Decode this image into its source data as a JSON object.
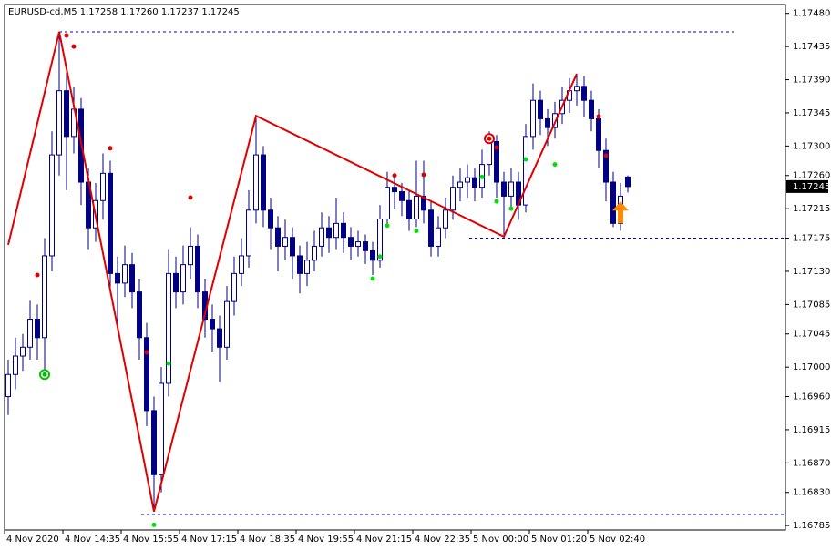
{
  "chart_data": {
    "type": "candlestick",
    "title": "EURUSD-cd,M5  1.17258 1.17260 1.17237 1.17245",
    "categories": [
      "4 Nov 2020",
      null,
      null,
      null,
      null,
      null,
      null,
      null,
      "4 Nov 14:35",
      null,
      null,
      null,
      null,
      null,
      null,
      null,
      "4 Nov 15:55",
      null,
      null,
      null,
      null,
      null,
      null,
      null,
      "4 Nov 17:15",
      null,
      null,
      null,
      null,
      null,
      null,
      null,
      "4 Nov 18:35",
      null,
      null,
      null,
      null,
      null,
      null,
      null,
      "4 Nov 19:55",
      null,
      null,
      null,
      null,
      null,
      null,
      null,
      "4 Nov 21:15",
      null,
      null,
      null,
      null,
      null,
      null,
      null,
      "4 Nov 22:35",
      null,
      null,
      null,
      null,
      null,
      null,
      null,
      "5 Nov 00:00",
      null,
      null,
      null,
      null,
      null,
      null,
      null,
      "5 Nov 01:20",
      null,
      null,
      null,
      null,
      null,
      null,
      null,
      "5 Nov 02:40",
      null,
      null,
      null,
      null,
      null
    ],
    "open": [
      1.1696,
      1.1699,
      1.17015,
      1.17027,
      1.17065,
      1.1704,
      1.17151,
      1.17288,
      1.17375,
      1.17313,
      1.1735,
      1.17251,
      1.17189,
      1.17226,
      1.17263,
      1.17127,
      1.17114,
      1.17139,
      1.17102,
      1.1704,
      1.16941,
      1.16854,
      1.16978,
      1.17127,
      1.17102,
      1.17139,
      1.17164,
      1.17102,
      1.17065,
      1.17052,
      1.17027,
      1.17089,
      1.17127,
      1.17151,
      1.17213,
      1.17288,
      1.17213,
      1.17189,
      1.17164,
      1.17176,
      1.17151,
      1.17127,
      1.17145,
      1.17164,
      1.17189,
      1.17176,
      1.17195,
      1.17176,
      1.17164,
      1.1717,
      1.17158,
      1.17145,
      1.17201,
      1.17244,
      1.17238,
      1.17226,
      1.17201,
      1.17232,
      1.17213,
      1.17164,
      1.17189,
      1.17213,
      1.17244,
      1.17251,
      1.17257,
      1.17244,
      1.17275,
      1.17306,
      1.17251,
      1.17232,
      1.17251,
      1.1722,
      1.17313,
      1.17362,
      1.17337,
      1.17325,
      1.17344,
      1.17362,
      1.17375,
      1.17381,
      1.17362,
      1.17337,
      1.17294,
      1.17251,
      1.17195,
      1.17258
    ],
    "high": [
      1.1701,
      1.1704,
      1.17045,
      1.1709,
      1.17085,
      1.17175,
      1.1732,
      1.17455,
      1.174,
      1.1738,
      1.17365,
      1.1727,
      1.1725,
      1.1729,
      1.1728,
      1.1715,
      1.17165,
      1.17155,
      1.1712,
      1.1706,
      1.1696,
      1.17,
      1.1716,
      1.1715,
      1.17165,
      1.1719,
      1.1718,
      1.1712,
      1.17085,
      1.1707,
      1.1711,
      1.1715,
      1.17175,
      1.1724,
      1.17341,
      1.173,
      1.1723,
      1.17205,
      1.172,
      1.1719,
      1.17165,
      1.1717,
      1.17185,
      1.1721,
      1.17205,
      1.1723,
      1.1721,
      1.1719,
      1.17185,
      1.1718,
      1.1717,
      1.1722,
      1.17265,
      1.1726,
      1.1725,
      1.1724,
      1.1728,
      1.1728,
      1.17225,
      1.17205,
      1.1723,
      1.1726,
      1.1727,
      1.17275,
      1.1727,
      1.17295,
      1.1732,
      1.17315,
      1.17265,
      1.1727,
      1.17265,
      1.1733,
      1.17385,
      1.17375,
      1.1735,
      1.1736,
      1.1738,
      1.17392,
      1.17398,
      1.17395,
      1.17375,
      1.1735,
      1.1731,
      1.17265,
      1.1725,
      1.1726
    ],
    "low": [
      1.16935,
      1.1697,
      1.16995,
      1.1701,
      1.1701,
      1.16985,
      1.1713,
      1.1726,
      1.1724,
      1.1729,
      1.1722,
      1.1716,
      1.1717,
      1.172,
      1.171,
      1.1705,
      1.17095,
      1.1708,
      1.1701,
      1.1692,
      1.16804,
      1.1683,
      1.1696,
      1.1708,
      1.17085,
      1.1712,
      1.1708,
      1.1704,
      1.1702,
      1.1698,
      1.1701,
      1.1707,
      1.1711,
      1.17135,
      1.17195,
      1.1719,
      1.1716,
      1.1713,
      1.17145,
      1.1712,
      1.171,
      1.1711,
      1.1713,
      1.1715,
      1.17155,
      1.1716,
      1.17155,
      1.17145,
      1.1715,
      1.1714,
      1.17125,
      1.17135,
      1.1719,
      1.17215,
      1.17205,
      1.17185,
      1.1719,
      1.17195,
      1.1715,
      1.1715,
      1.17175,
      1.172,
      1.17225,
      1.1723,
      1.17225,
      1.1723,
      1.1726,
      1.1723,
      1.17177,
      1.17215,
      1.172,
      1.1721,
      1.17295,
      1.17315,
      1.173,
      1.1731,
      1.1733,
      1.17345,
      1.17355,
      1.1734,
      1.1732,
      1.1727,
      1.17225,
      1.1719,
      1.17185,
      1.17237
    ],
    "close": [
      1.1699,
      1.17015,
      1.17027,
      1.17065,
      1.1704,
      1.17151,
      1.17288,
      1.17375,
      1.17313,
      1.1735,
      1.17251,
      1.17189,
      1.17226,
      1.17263,
      1.17127,
      1.17114,
      1.17139,
      1.17102,
      1.1704,
      1.16941,
      1.16854,
      1.16978,
      1.17127,
      1.17102,
      1.17139,
      1.17164,
      1.17102,
      1.17065,
      1.17052,
      1.17027,
      1.17089,
      1.17127,
      1.17151,
      1.17213,
      1.17288,
      1.17213,
      1.17189,
      1.17164,
      1.17176,
      1.17151,
      1.17127,
      1.17145,
      1.17164,
      1.17189,
      1.17176,
      1.17195,
      1.17176,
      1.17164,
      1.1717,
      1.17158,
      1.17145,
      1.17201,
      1.17244,
      1.17238,
      1.17226,
      1.17201,
      1.17232,
      1.17213,
      1.17164,
      1.17189,
      1.17213,
      1.17244,
      1.17251,
      1.17257,
      1.17244,
      1.17275,
      1.17306,
      1.17251,
      1.17232,
      1.17251,
      1.1722,
      1.17313,
      1.17362,
      1.17337,
      1.17325,
      1.17344,
      1.17362,
      1.17375,
      1.17381,
      1.17362,
      1.17337,
      1.17294,
      1.17251,
      1.17195,
      1.17232,
      1.17245
    ],
    "up_color": "#ffffff",
    "down_color": "#000080",
    "wick_color": "#000080",
    "zigzag": {
      "color": "#e00000",
      "x": [
        0,
        7,
        20,
        34,
        68,
        78
      ],
      "values": [
        1.17166,
        1.17455,
        1.16804,
        1.17341,
        1.17177,
        1.17398
      ]
    },
    "red_dots": {
      "color": "#e00000",
      "x": [
        4,
        8,
        9,
        14,
        19,
        25,
        53,
        57,
        67,
        81,
        82
      ],
      "values": [
        1.17125,
        1.1745,
        1.17435,
        1.17297,
        1.1702,
        1.1723,
        1.1726,
        1.17261,
        1.17298,
        1.1734,
        1.17287
      ]
    },
    "green_dots": {
      "color": "#00e000",
      "x": [
        5,
        20,
        22,
        50,
        51,
        52,
        56,
        65,
        67,
        69,
        71,
        75
      ],
      "values": [
        1.16989,
        1.16786,
        1.17005,
        1.1712,
        1.1715,
        1.17192,
        1.17185,
        1.17258,
        1.17225,
        1.17215,
        1.17282,
        1.17275
      ]
    },
    "levels": {
      "color": "#0000c0",
      "values": [
        1.17455,
        1.168,
        1.17175
      ]
    },
    "rings": {
      "colors": [
        "#00c000",
        "#e00000"
      ],
      "x": [
        5,
        66
      ],
      "values": [
        1.1699,
        1.1731
      ]
    },
    "arrow": {
      "color": "#ff8c00",
      "x": 84,
      "value": 1.1721
    },
    "last_price": {
      "value": 1.17245,
      "label": "1.17245"
    },
    "ylim": [
      1.16779,
      1.17492
    ],
    "yticks": [
      {
        "value": 1.1748,
        "label": "1.17480"
      },
      {
        "value": 1.17435,
        "label": "1.17435"
      },
      {
        "value": 1.1739,
        "label": "1.17390"
      },
      {
        "value": 1.17345,
        "label": "1.17345"
      },
      {
        "value": 1.173,
        "label": "1.17300"
      },
      {
        "value": 1.1726,
        "label": "1.17260"
      },
      {
        "value": 1.17215,
        "label": "1.17215"
      },
      {
        "value": 1.17175,
        "label": "1.17175"
      },
      {
        "value": 1.1713,
        "label": "1.17130"
      },
      {
        "value": 1.17085,
        "label": "1.17085"
      },
      {
        "value": 1.17045,
        "label": "1.17045"
      },
      {
        "value": 1.17,
        "label": "1.17000"
      },
      {
        "value": 1.1696,
        "label": "1.16960"
      },
      {
        "value": 1.16915,
        "label": "1.16915"
      },
      {
        "value": 1.1687,
        "label": "1.16870"
      },
      {
        "value": 1.1683,
        "label": "1.16830"
      },
      {
        "value": 1.16785,
        "label": "1.16785"
      }
    ]
  }
}
